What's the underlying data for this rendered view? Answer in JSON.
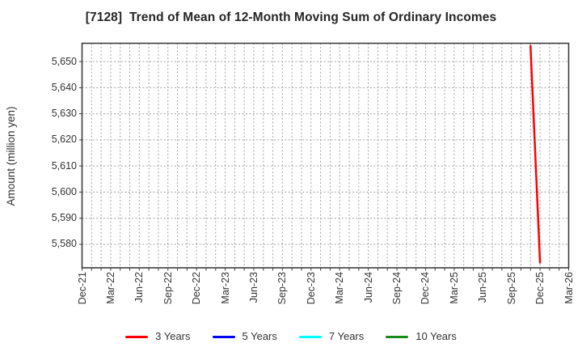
{
  "title": "[7128]  Trend of Mean of 12-Month Moving Sum of Ordinary Incomes",
  "y_axis": {
    "label": "Amount (million yen)",
    "ticks": [
      "5,650",
      "5,640",
      "5,630",
      "5,620",
      "5,610",
      "5,600",
      "5,590",
      "5,580"
    ],
    "tick_values": [
      5650,
      5640,
      5630,
      5620,
      5610,
      5600,
      5590,
      5580
    ]
  },
  "x_axis": {
    "tick_labels": [
      "Dec-21",
      "Mar-22",
      "Jun-22",
      "Sep-22",
      "Dec-22",
      "Mar-23",
      "Jun-23",
      "Sep-23",
      "Dec-23",
      "Mar-24",
      "Jun-24",
      "Sep-24",
      "Dec-24",
      "Mar-25",
      "Jun-25",
      "Sep-25",
      "Dec-25",
      "Mar-26"
    ],
    "tick_interval_months": 3,
    "months_span": 51
  },
  "legend": {
    "items": [
      {
        "label": "3 Years",
        "color": "#ff0000"
      },
      {
        "label": "5 Years",
        "color": "#0000ff"
      },
      {
        "label": "7 Years",
        "color": "#00ffff"
      },
      {
        "label": "10 Years",
        "color": "#1a8a1a"
      }
    ]
  },
  "chart_data": {
    "type": "line",
    "title": "[7128]  Trend of Mean of 12-Month Moving Sum of Ordinary Incomes",
    "xlabel": "",
    "ylabel": "Amount (million yen)",
    "ylim": [
      5571,
      5657
    ],
    "x_range": [
      "Dec-21",
      "Mar-26"
    ],
    "grid": true,
    "legend_position": "bottom",
    "series": [
      {
        "name": "3 Years",
        "color": "#ff0000",
        "points": [
          {
            "x": "Nov-25",
            "month_index": 47,
            "y": 5656
          },
          {
            "x": "Dec-25",
            "month_index": 48,
            "y": 5573
          }
        ]
      },
      {
        "name": "5 Years",
        "color": "#0000ff",
        "points": []
      },
      {
        "name": "7 Years",
        "color": "#00ffff",
        "points": []
      },
      {
        "name": "10 Years",
        "color": "#1a8a1a",
        "points": []
      }
    ]
  },
  "colors": {
    "grid": "#a3a3a3",
    "axis": "#3d3d3d",
    "tick_text": "#333333",
    "series_red": "#ff0000",
    "series_blue": "#0000ff",
    "series_cyan": "#00ffff",
    "series_green": "#1a8a1a"
  }
}
